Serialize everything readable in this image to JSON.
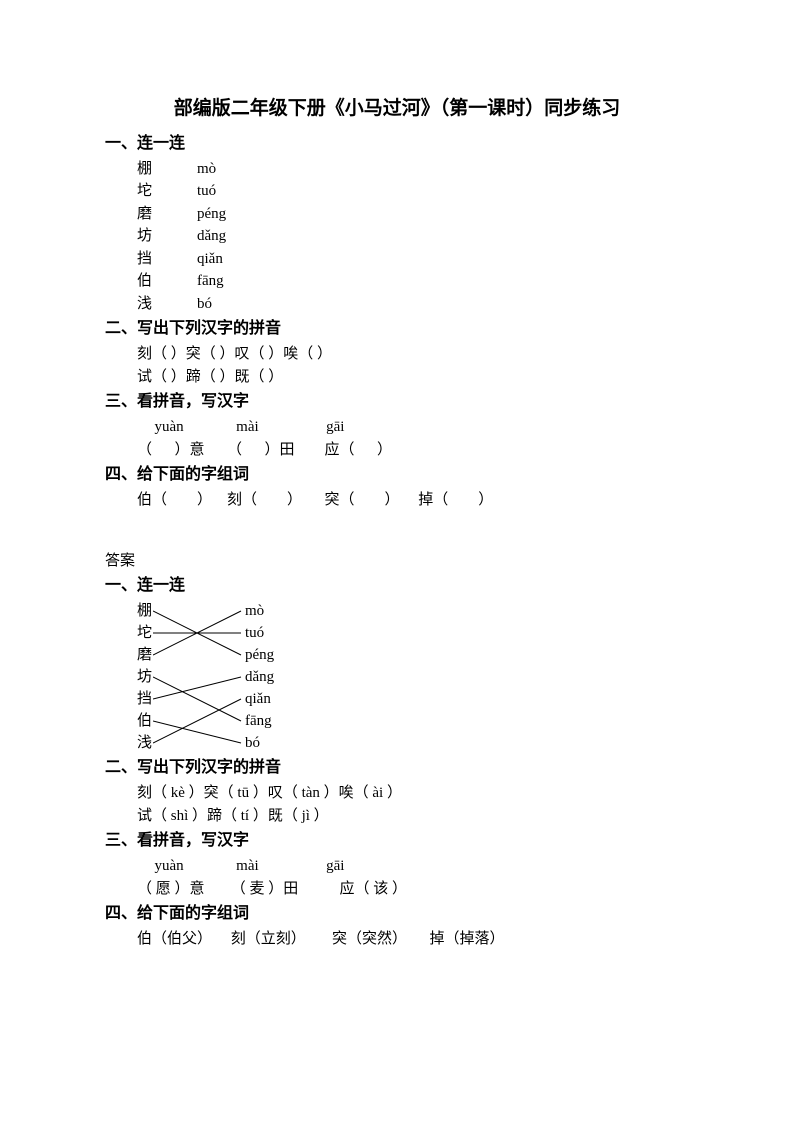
{
  "title": "部编版二年级下册《小马过河》（第一课时）同步练习",
  "sections": {
    "s1": "一、连一连",
    "s2": "二、写出下列汉字的拼音",
    "s3": "三、看拼音，写汉字",
    "s4": "四、给下面的字组词"
  },
  "q1": {
    "left": [
      "棚",
      "坨",
      "磨",
      "坊",
      "挡",
      "伯",
      "浅"
    ],
    "right": [
      "mò",
      "tuó",
      "péng",
      "dǎng",
      "qiǎn",
      "fāng",
      "bó"
    ]
  },
  "q2": {
    "line1": "刻（      ）突（      ）叹（      ）唉（      ）",
    "line2": "试（      ）蹄（      ）既（      ）"
  },
  "q3": {
    "pinyin": "  yuàn              mài                  gāi",
    "line": "（      ）意      （      ）田        应（      ）"
  },
  "q4": {
    "line": "伯（        ）    刻（        ）      突（        ）     掉（        ）"
  },
  "answer_label": "答案",
  "a1": {
    "left": [
      "棚",
      "坨",
      "磨",
      "坊",
      "挡",
      "伯",
      "浅"
    ],
    "right": [
      "mò",
      "tuó",
      "péng",
      "dǎng",
      "qiǎn",
      "fāng",
      "bó"
    ],
    "connections": [
      [
        0,
        2
      ],
      [
        1,
        1
      ],
      [
        2,
        0
      ],
      [
        3,
        5
      ],
      [
        4,
        3
      ],
      [
        5,
        6
      ],
      [
        6,
        4
      ]
    ],
    "line_color": "#000000",
    "line_width": 1
  },
  "a2": {
    "line1": "刻（ kè ）突（ tū ）叹（ tàn ）唉（ ài ）",
    "line2": "试（ shì ）蹄（ tí ）既（ jì ）"
  },
  "a3": {
    "pinyin": "  yuàn              mài                  gāi",
    "line": "（ 愿 ）意       （ 麦 ）田           应（ 该 ）"
  },
  "a4": {
    "line": "伯（伯父）     刻（立刻）       突（突然）      掉（掉落）"
  },
  "style": {
    "background_color": "#ffffff",
    "text_color": "#000000",
    "title_fontsize": 19,
    "heading_fontsize": 16,
    "body_fontsize": 15,
    "font_family": "SimSun"
  }
}
